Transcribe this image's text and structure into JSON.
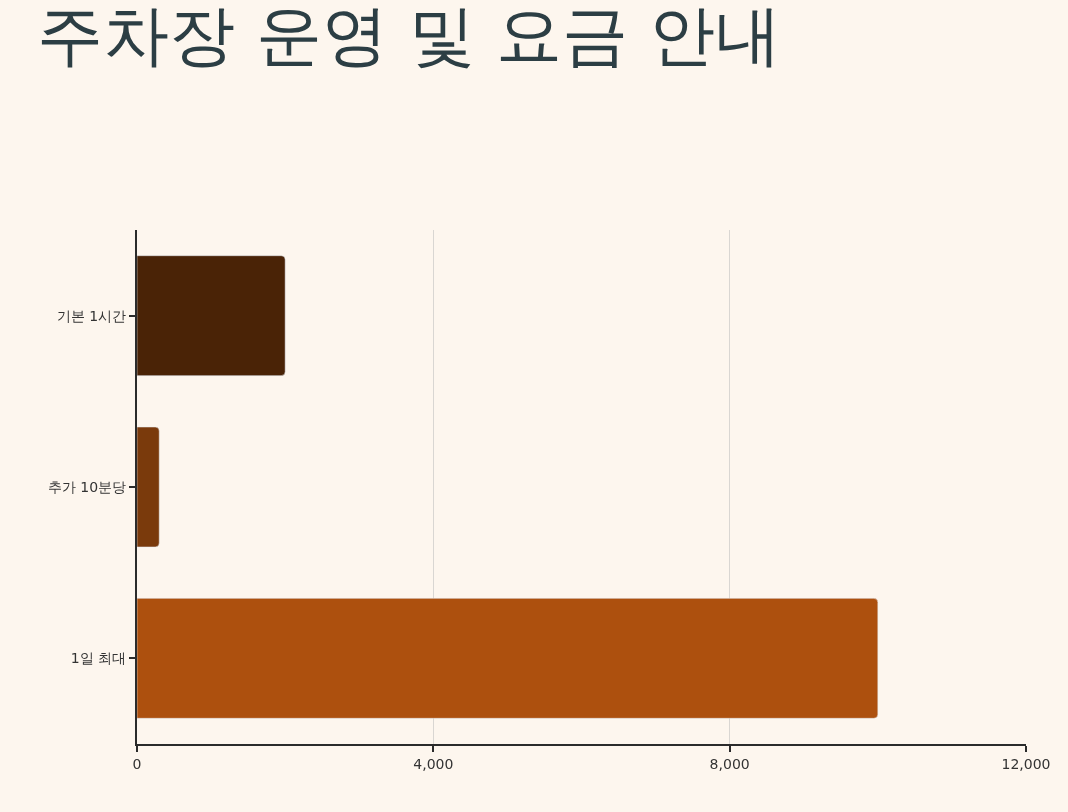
{
  "chart_data": {
    "type": "bar",
    "title": "주차장 운영 및 요금 안내",
    "orientation": "horizontal",
    "categories": [
      "기본 1시간",
      "추가 10분당",
      "1일 최대"
    ],
    "values": [
      2000,
      300,
      10000
    ],
    "colors": [
      "#4a2306",
      "#7a3a0c",
      "#ad500e"
    ],
    "xlim": [
      0,
      12000
    ],
    "xticks": [
      0,
      {
        "value": 4000,
        "label": "4,000"
      },
      {
        "value": 8000,
        "label": "8,000"
      },
      {
        "value": 12000,
        "label": "12,000"
      }
    ],
    "grid": "x"
  }
}
